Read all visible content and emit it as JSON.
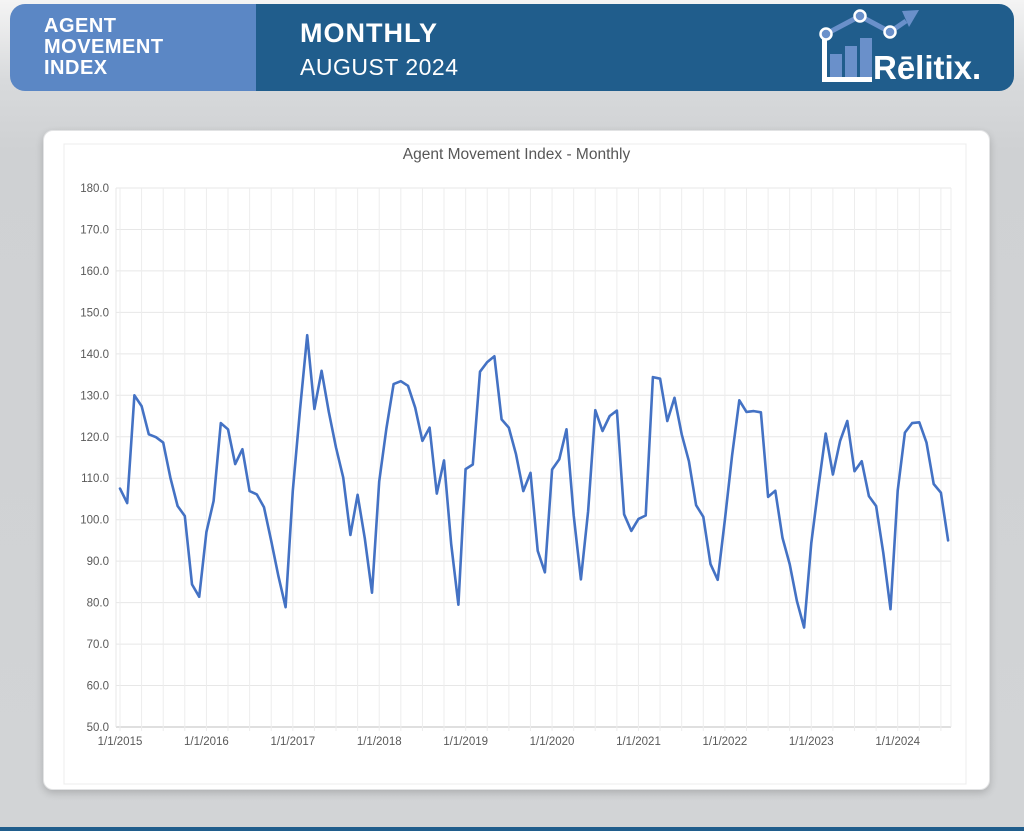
{
  "header": {
    "product_title_line1": "AGENT",
    "product_title_line2": "MOVEMENT",
    "product_title_line3": "INDEX",
    "period_label": "MONTHLY",
    "period_date": "AUGUST 2024",
    "brand_name": "Rēlitix.",
    "colors": {
      "light_blue": "#5b87c5",
      "dark_blue": "#205d8c",
      "logo_accent": "#6a90ca"
    }
  },
  "card": {
    "chart_title": "Agent Movement Index - Monthly"
  },
  "chart_data": {
    "type": "line",
    "title": "Agent Movement Index - Monthly",
    "xlabel": "",
    "ylabel": "",
    "ylim": [
      50,
      180
    ],
    "y_step": 10,
    "y_tick_labels": [
      "50.0",
      "60.0",
      "70.0",
      "80.0",
      "90.0",
      "100.0",
      "110.0",
      "120.0",
      "130.0",
      "140.0",
      "150.0",
      "160.0",
      "170.0",
      "180.0"
    ],
    "x_tick_labels": [
      "1/1/2015",
      "1/1/2016",
      "1/1/2017",
      "1/1/2018",
      "1/1/2019",
      "1/1/2020",
      "1/1/2021",
      "1/1/2022",
      "1/1/2023",
      "1/1/2024"
    ],
    "grid": {
      "horizontal": "every 10 units",
      "vertical": "quarterly"
    },
    "legend": "none",
    "series": [
      {
        "name": "Agent Movement Index",
        "color": "#4472c4",
        "start": "2015-01",
        "end": "2024-08",
        "monthly_values": [
          107.5,
          104.0,
          130.0,
          127.4,
          120.6,
          119.9,
          118.6,
          110.1,
          103.3,
          100.9,
          84.4,
          81.4,
          97.0,
          104.5,
          123.3,
          121.8,
          113.4,
          117.0,
          106.9,
          106.1,
          103.0,
          94.9,
          86.4,
          78.9,
          107.0,
          126.5,
          144.5,
          126.7,
          135.9,
          126.0,
          117.4,
          110.2,
          96.3,
          106.0,
          95.5,
          82.4,
          109.2,
          122.0,
          132.7,
          133.4,
          132.3,
          127.0,
          119.0,
          122.2,
          106.3,
          114.3,
          94.1,
          79.5,
          112.2,
          113.3,
          135.7,
          138.0,
          139.4,
          124.2,
          122.2,
          115.8,
          106.9,
          111.3,
          92.5,
          87.3,
          112.1,
          114.6,
          121.8,
          101.0,
          85.6,
          102.0,
          126.4,
          121.4,
          125.0,
          126.3,
          101.3,
          97.3,
          100.2,
          101.0,
          134.4,
          134.0,
          123.8,
          129.4,
          120.6,
          114.1,
          103.5,
          100.7,
          89.3,
          85.5,
          100.0,
          115.5,
          128.8,
          126.0,
          126.2,
          125.9,
          105.5,
          107.0,
          95.6,
          89.3,
          80.4,
          74.0,
          94.4,
          108.0,
          120.8,
          110.9,
          119.0,
          123.8,
          111.7,
          114.1,
          105.7,
          103.3,
          92.0,
          78.4,
          107.0,
          121.0,
          123.3,
          123.5,
          118.6,
          108.6,
          106.5,
          95.0
        ]
      }
    ]
  }
}
